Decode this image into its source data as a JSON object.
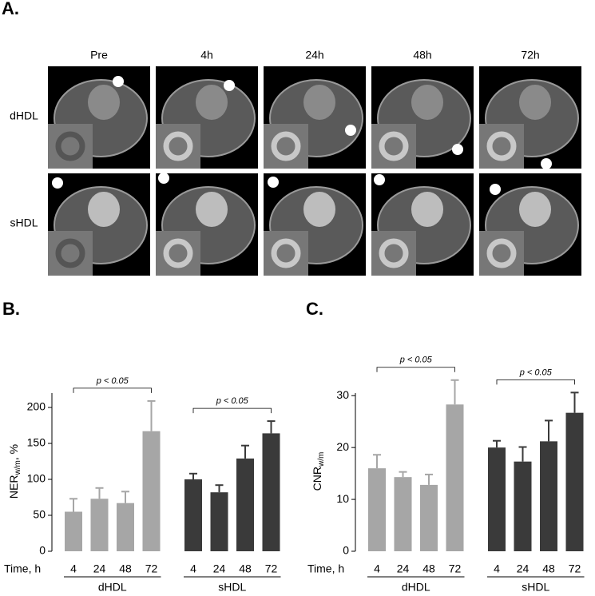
{
  "panel_a": {
    "label": "A.",
    "columns": [
      "Pre",
      "4h",
      "24h",
      "48h",
      "72h"
    ],
    "rows": [
      "dHDL",
      "sHDL"
    ]
  },
  "chart_data": [
    {
      "type": "bar",
      "panel": "B.",
      "y_label": {
        "text": "NER",
        "subscript": "w/m",
        "suffix": ", %"
      },
      "x_label": "Time, h",
      "categories": [
        "4",
        "24",
        "48",
        "72"
      ],
      "series": [
        {
          "name": "dHDL",
          "color": "#a6a6a6",
          "values": [
            55,
            73,
            67,
            167
          ],
          "errors": [
            18,
            15,
            16,
            42
          ],
          "annotation": "p < 0.05"
        },
        {
          "name": "sHDL",
          "color": "#3a3a3a",
          "values": [
            100,
            82,
            129,
            164
          ],
          "errors": [
            8,
            10,
            18,
            17
          ],
          "annotation": "p < 0.05"
        }
      ],
      "ylim": [
        0,
        220
      ],
      "yticks": [
        0,
        50,
        100,
        150,
        200
      ]
    },
    {
      "type": "bar",
      "panel": "C.",
      "y_label": {
        "text": "CNR",
        "subscript": "w/m",
        "suffix": ""
      },
      "x_label": "Time, h",
      "categories": [
        "4",
        "24",
        "48",
        "72"
      ],
      "series": [
        {
          "name": "dHDL",
          "color": "#a6a6a6",
          "values": [
            16,
            14.3,
            12.8,
            28.3
          ],
          "errors": [
            2.6,
            1,
            2,
            4.7
          ],
          "annotation": "p < 0.05"
        },
        {
          "name": "sHDL",
          "color": "#3a3a3a",
          "values": [
            20,
            17.3,
            21.2,
            26.7
          ],
          "errors": [
            1.3,
            2.8,
            4,
            3.9
          ],
          "annotation": "p < 0.05"
        }
      ],
      "ylim": [
        0,
        30.5
      ],
      "yticks": [
        0,
        10,
        20,
        30
      ]
    }
  ]
}
